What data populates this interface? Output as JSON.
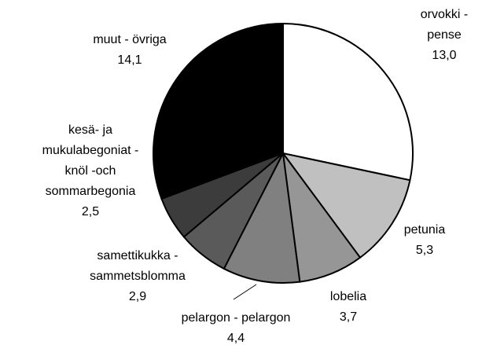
{
  "chart_data": {
    "type": "pie",
    "categories": [
      "orvokki - pense",
      "petunia",
      "lobelia",
      "pelargon - pelargon",
      "samettikukka -\nsammetsblomma",
      "kesä- ja\nmukulabegoniat -\nknöl -och\nsommarbegonia",
      "muut - övriga"
    ],
    "values": [
      13.0,
      5.3,
      3.7,
      4.4,
      2.9,
      2.5,
      14.1
    ],
    "value_labels": [
      "13,0",
      "5,3",
      "3,7",
      "4,4",
      "2,9",
      "2,5",
      "14,1"
    ],
    "colors": [
      "#ffffff",
      "#c0c0c0",
      "#969696",
      "#808080",
      "#5a5a5a",
      "#3c3c3c",
      "#000000"
    ]
  }
}
